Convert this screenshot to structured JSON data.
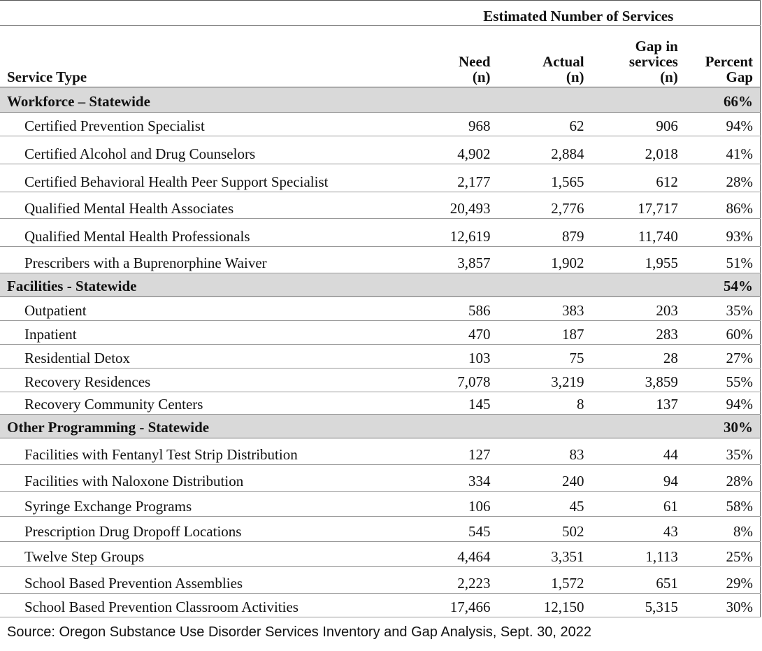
{
  "table": {
    "super_header": "Estimated Number of Services",
    "columns": [
      {
        "line1": "",
        "line2": "",
        "line3": "Service Type"
      },
      {
        "line1": "",
        "line2": "Need",
        "line3": "(n)"
      },
      {
        "line1": "",
        "line2": "Actual",
        "line3": "(n)"
      },
      {
        "line1": "Gap in",
        "line2": "services",
        "line3": "(n)"
      },
      {
        "line1": "",
        "line2": "Percent",
        "line3": "Gap"
      }
    ],
    "groups": [
      {
        "name": "Workforce – Statewide",
        "percent": "66%",
        "heights": [
          36,
          34,
          40,
          40,
          38,
          40,
          38
        ],
        "rows": [
          [
            "Certified Prevention Specialist",
            "968",
            "62",
            "906",
            "94%"
          ],
          [
            "Certified Alcohol and Drug Counselors",
            "4,902",
            "2,884",
            "2,018",
            "41%"
          ],
          [
            "Certified Behavioral Health Peer Support Specialist",
            "2,177",
            "1,565",
            "612",
            "28%"
          ],
          [
            "Qualified Mental Health Associates",
            "20,493",
            "2,776",
            "17,717",
            "86%"
          ],
          [
            "Qualified Mental Health Professionals",
            "12,619",
            "879",
            "11,740",
            "93%"
          ],
          [
            "Prescribers with a Buprenorphine Waiver",
            "3,857",
            "1,902",
            "1,955",
            "51%"
          ]
        ]
      },
      {
        "name": "Facilities - Statewide",
        "percent": "54%",
        "heights": [
          34,
          34,
          34,
          34,
          34,
          32
        ],
        "rows": [
          [
            "Outpatient",
            "586",
            "383",
            "203",
            "35%"
          ],
          [
            "Inpatient",
            "470",
            "187",
            "283",
            "60%"
          ],
          [
            "Residential Detox",
            "103",
            "75",
            "28",
            "27%"
          ],
          [
            "Recovery Residences",
            "7,078",
            "3,219",
            "3,859",
            "55%"
          ],
          [
            "Recovery Community Centers",
            "145",
            "8",
            "137",
            "94%"
          ]
        ]
      },
      {
        "name": "Other Programming - Statewide",
        "percent": "30%",
        "heights": [
          34,
          38,
          38,
          36,
          36,
          36,
          38,
          34
        ],
        "rows": [
          [
            "Facilities with Fentanyl Test Strip Distribution",
            "127",
            "83",
            "44",
            "35%"
          ],
          [
            "Facilities with Naloxone Distribution",
            "334",
            "240",
            "94",
            "28%"
          ],
          [
            "Syringe Exchange Programs",
            "106",
            "45",
            "61",
            "58%"
          ],
          [
            "Prescription Drug Dropoff Locations",
            "545",
            "502",
            "43",
            "8%"
          ],
          [
            "Twelve Step Groups",
            "4,464",
            "3,351",
            "1,113",
            "25%"
          ],
          [
            "School Based Prevention Assemblies",
            "2,223",
            "1,572",
            "651",
            "29%"
          ],
          [
            "School Based Prevention Classroom Activities",
            "17,466",
            "12,150",
            "5,315",
            "30%"
          ]
        ]
      }
    ]
  },
  "source": "Source: Oregon Substance Use Disorder Services Inventory and Gap Analysis, Sept. 30, 2022",
  "colors": {
    "group_row_bg": "#d9d9d9"
  }
}
